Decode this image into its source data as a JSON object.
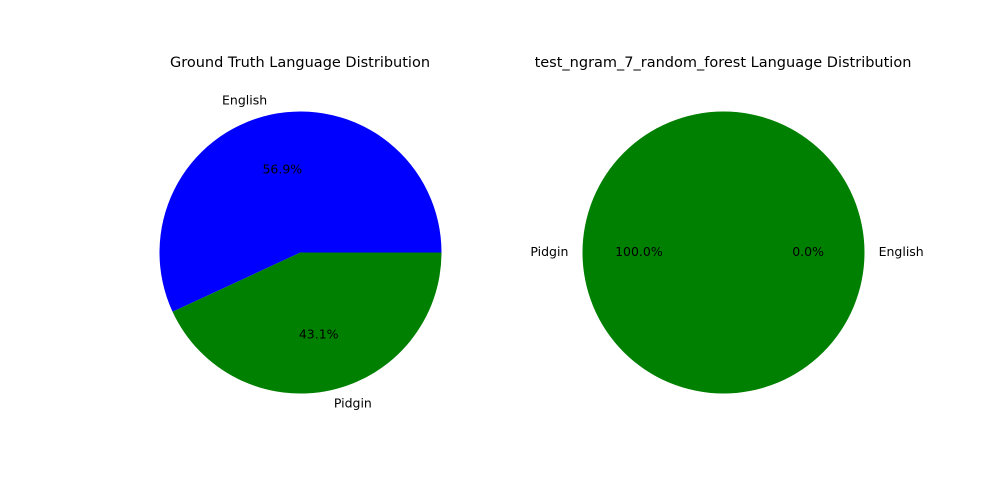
{
  "chart_data": [
    {
      "type": "pie",
      "title": "Ground Truth Language Distribution",
      "labels": [
        "English",
        "Pidgin"
      ],
      "values": [
        56.9,
        43.1
      ],
      "pct_labels": [
        "56.9%",
        "43.1%"
      ],
      "colors": [
        "#0000ff",
        "#008000"
      ]
    },
    {
      "type": "pie",
      "title": "test_ngram_7_random_forest Language Distribution",
      "labels": [
        "English",
        "Pidgin"
      ],
      "values": [
        0.0,
        100.0
      ],
      "pct_labels": [
        "0.0%",
        "100.0%"
      ],
      "colors": [
        "#0000ff",
        "#008000"
      ]
    }
  ]
}
